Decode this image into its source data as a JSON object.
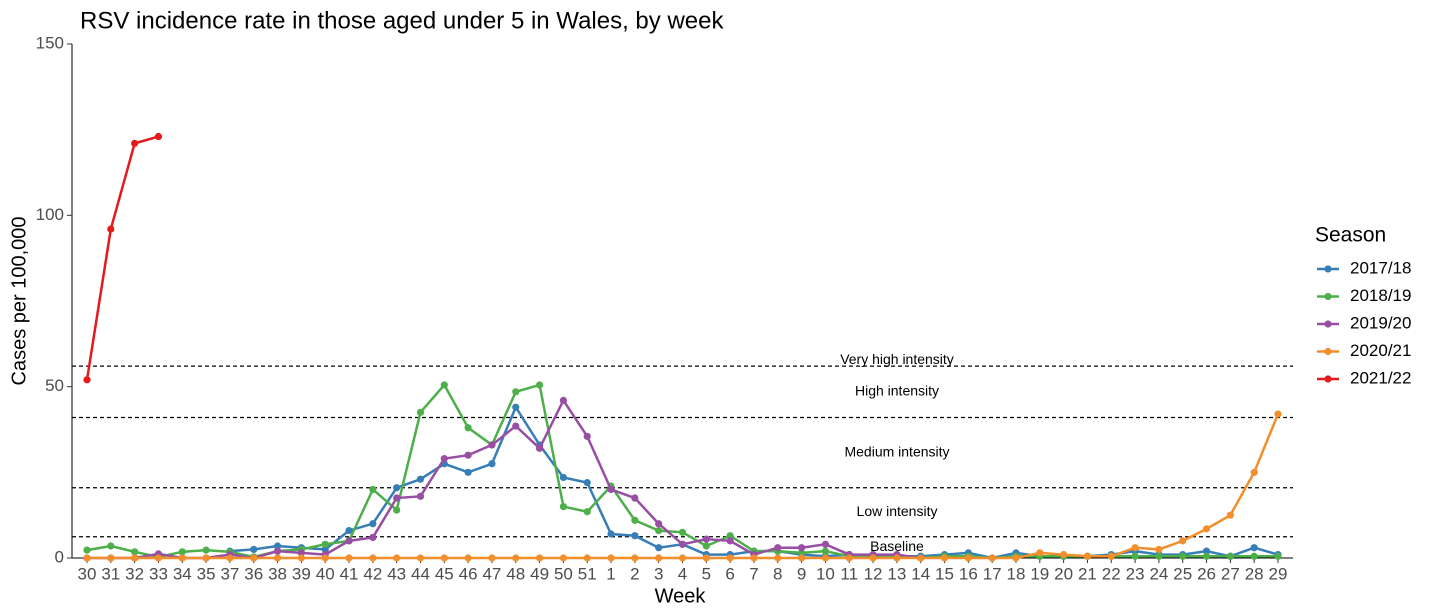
{
  "chart_data": {
    "type": "line",
    "title": "RSV incidence rate in those aged under 5 in Wales, by week",
    "x_label": "Week",
    "y_label": "Cases per 100,000",
    "legend_title": "Season",
    "legend_position": "right",
    "categories": [
      "30",
      "31",
      "32",
      "33",
      "34",
      "35",
      "37",
      "36",
      "38",
      "39",
      "40",
      "41",
      "42",
      "43",
      "44",
      "45",
      "46",
      "47",
      "48",
      "49",
      "50",
      "51",
      "1",
      "2",
      "3",
      "4",
      "5",
      "6",
      "7",
      "8",
      "9",
      "10",
      "11",
      "12",
      "13",
      "14",
      "15",
      "16",
      "17",
      "18",
      "19",
      "20",
      "21",
      "22",
      "23",
      "24",
      "25",
      "26",
      "27",
      "28",
      "29"
    ],
    "ylim": [
      0,
      150
    ],
    "yticks": [
      0,
      50,
      100,
      150
    ],
    "grid": false,
    "thresholds": [
      6.2,
      20.5,
      41,
      56
    ],
    "threshold_labels": [
      "Baseline",
      "Low intensity",
      "Medium intensity",
      "High intensity",
      "Very high intensity"
    ],
    "series": [
      {
        "name": "2017/18",
        "color": "#377eb8",
        "values": [
          null,
          null,
          null,
          null,
          null,
          null,
          2,
          2.5,
          3.5,
          3,
          2.5,
          8,
          10,
          20.5,
          23,
          27.5,
          25,
          27.5,
          44,
          33,
          23.5,
          22,
          7,
          6.5,
          3,
          4,
          1,
          1,
          2,
          2,
          1,
          0.5,
          1,
          0.5,
          0.5,
          0.5,
          1,
          1.5,
          0,
          1.5,
          0.5,
          0.5,
          0.5,
          1,
          2,
          1,
          1,
          2,
          0.5,
          3,
          1
        ]
      },
      {
        "name": "2018/19",
        "color": "#4daf4a",
        "values": [
          2.3,
          3.5,
          1.8,
          0.3,
          1.8,
          2.3,
          1.8,
          0.3,
          2,
          2.5,
          4,
          5,
          20,
          14,
          42.5,
          50.5,
          38,
          33,
          48.5,
          50.5,
          15,
          13.5,
          21,
          11,
          8,
          7.5,
          3.5,
          6.5,
          2,
          2,
          1.5,
          2,
          0.5,
          0.5,
          0.5,
          0,
          0.5,
          0.5,
          0,
          0.5,
          0.5,
          0.5,
          0.5,
          0.5,
          0.5,
          0.5,
          0.5,
          0.5,
          0.5,
          0.5,
          0.5
        ]
      },
      {
        "name": "2019/20",
        "color": "#984ea3",
        "values": [
          0,
          0,
          0,
          1.2,
          0,
          0,
          1,
          0,
          2,
          1.5,
          1,
          5,
          6,
          17.5,
          18,
          29,
          30,
          33,
          38.5,
          32,
          46,
          35.5,
          20,
          17.5,
          10,
          4,
          5.5,
          5,
          1,
          3,
          3,
          4,
          1,
          1,
          1,
          0,
          null,
          null,
          null,
          null,
          null,
          null,
          null,
          null,
          null,
          null,
          null,
          null,
          null,
          null,
          null
        ]
      },
      {
        "name": "2020/21",
        "color": "#f28e2b",
        "values": [
          0,
          0,
          0,
          0,
          0,
          0,
          0,
          0,
          0,
          0,
          0,
          0,
          0,
          0,
          0,
          0,
          0,
          0,
          0,
          0,
          0,
          0,
          0,
          0,
          0,
          0,
          0,
          0,
          0,
          0,
          0,
          0,
          0,
          0,
          0,
          0,
          0,
          0,
          0,
          0,
          1.5,
          1,
          0.5,
          0.5,
          3,
          2.5,
          5,
          8.5,
          12.5,
          25,
          42
        ]
      },
      {
        "name": "2021/22",
        "color": "#e41a1c",
        "values": [
          52,
          96,
          121,
          123,
          null,
          null,
          null,
          null,
          null,
          null,
          null,
          null,
          null,
          null,
          null,
          null,
          null,
          null,
          null,
          null,
          null,
          null,
          null,
          null,
          null,
          null,
          null,
          null,
          null,
          null,
          null,
          null,
          null,
          null,
          null,
          null,
          null,
          null,
          null,
          null,
          null,
          null,
          null,
          null,
          null,
          null,
          null,
          null,
          null,
          null,
          null
        ]
      }
    ]
  }
}
